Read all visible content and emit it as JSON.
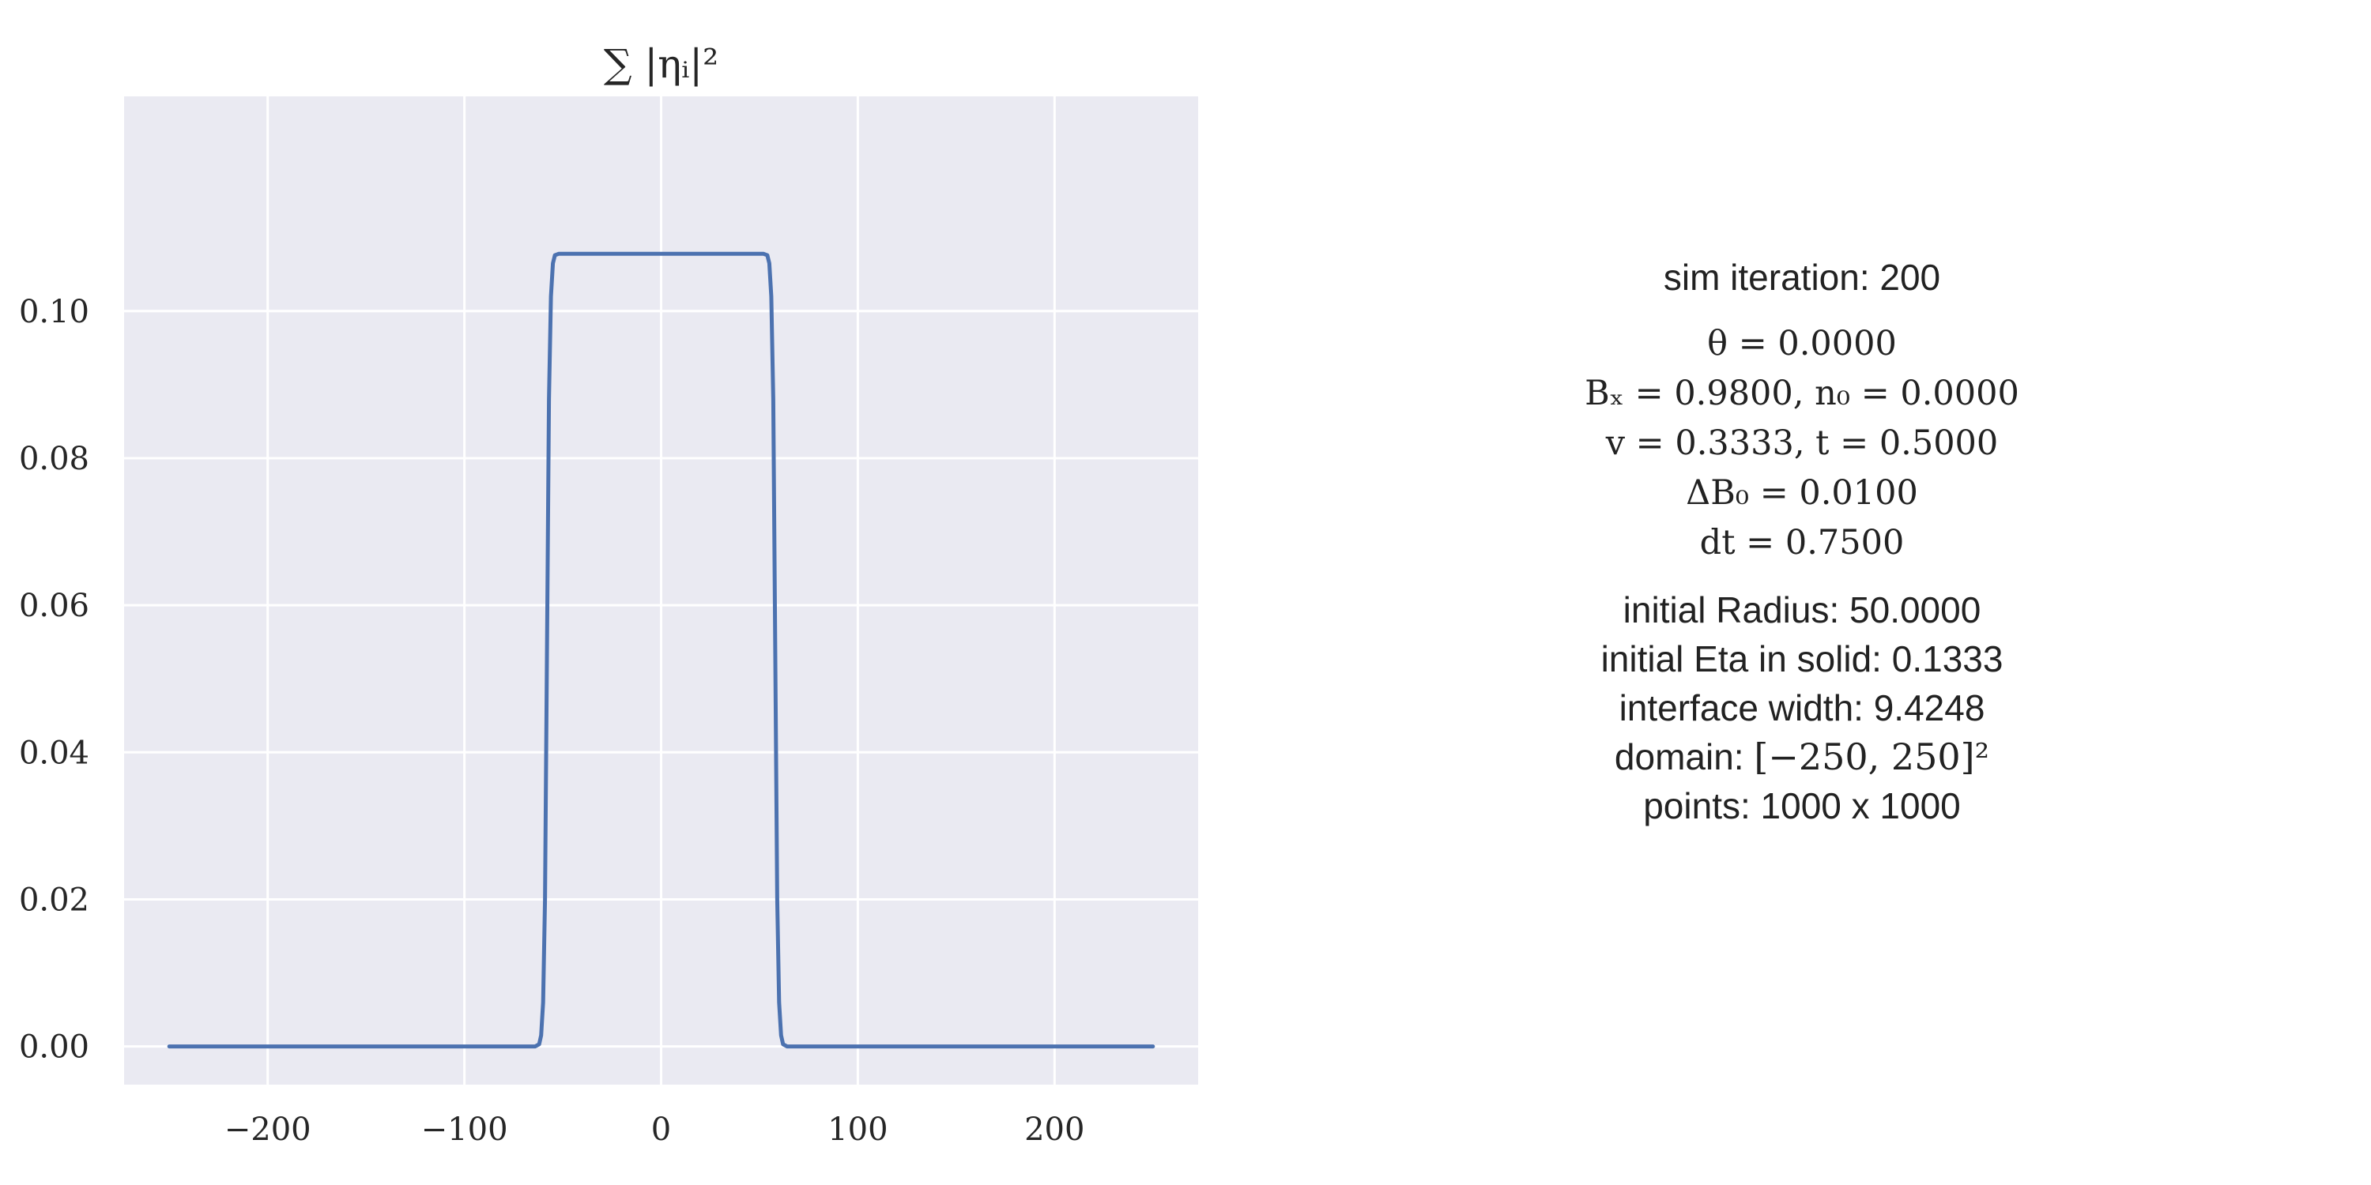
{
  "chart_data": {
    "type": "line",
    "title": "∑ |ηᵢ|²",
    "xlabel": "",
    "ylabel": "",
    "xlim": [
      -273,
      273
    ],
    "ylim": [
      -0.0052,
      0.1292
    ],
    "x_ticks": [
      -200,
      -100,
      0,
      100,
      200
    ],
    "x_tick_labels": [
      "−200",
      "−100",
      "0",
      "100",
      "200"
    ],
    "y_ticks": [
      0.0,
      0.02,
      0.04,
      0.06,
      0.08,
      0.1
    ],
    "y_tick_labels": [
      "0.00",
      "0.02",
      "0.04",
      "0.06",
      "0.08",
      "0.10"
    ],
    "grid": true,
    "background": "#eaeaf2",
    "series": [
      {
        "color": "#4c72b0",
        "x": [
          -250,
          -70,
          -64,
          -62,
          -61,
          -60,
          -59,
          -58,
          -57,
          -56,
          -55,
          -54,
          -52,
          52,
          54,
          55,
          56,
          57,
          58,
          59,
          60,
          61,
          62,
          64,
          70,
          250
        ],
        "y": [
          0.0,
          0.0,
          0.0,
          0.0003,
          0.0015,
          0.006,
          0.02,
          0.054,
          0.088,
          0.102,
          0.1065,
          0.1076,
          0.1078,
          0.1078,
          0.1076,
          0.1065,
          0.102,
          0.088,
          0.054,
          0.02,
          0.006,
          0.0015,
          0.0003,
          0.0,
          0.0,
          0.0
        ]
      }
    ]
  },
  "info": {
    "iteration": "sim iteration: 200",
    "theta": "θ = 0.0000",
    "bx_n0": "Bₓ = 0.9800, n₀ = 0.0000",
    "v_t": "v = 0.3333, t = 0.5000",
    "delta_b0": "ΔB₀ = 0.0100",
    "dt": "dt = 0.7500",
    "radius": "initial Radius: 50.0000",
    "eta_solid": "initial Eta in solid: 0.1333",
    "interface_width": "interface width: 9.4248",
    "domain_label": "domain: ",
    "domain_value": "[−250, 250]²",
    "points": "points: 1000 x 1000"
  }
}
